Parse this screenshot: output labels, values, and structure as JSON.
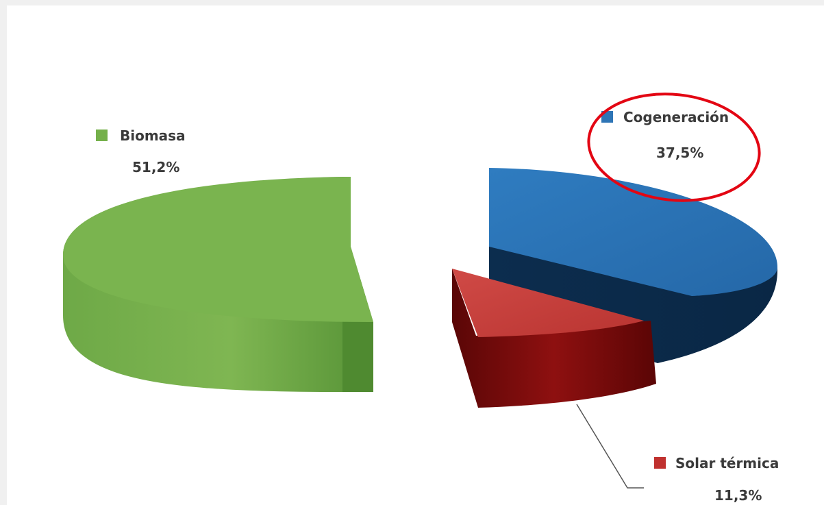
{
  "chart_data": {
    "type": "pie",
    "categories": [
      "Biomasa",
      "Cogeneración",
      "Solar térmica"
    ],
    "values": [
      51.2,
      37.5,
      11.3
    ],
    "value_labels": [
      "51,2%",
      "37,5%",
      "11,3%"
    ],
    "colors": {
      "Biomasa": "#74b04a",
      "Cogeneración": "#2e75b6",
      "Solar térmica": "#c0312f"
    },
    "style": "3d-exploded",
    "highlight": {
      "category": "Cogeneración",
      "shape": "ellipse",
      "color": "#e30613"
    }
  }
}
